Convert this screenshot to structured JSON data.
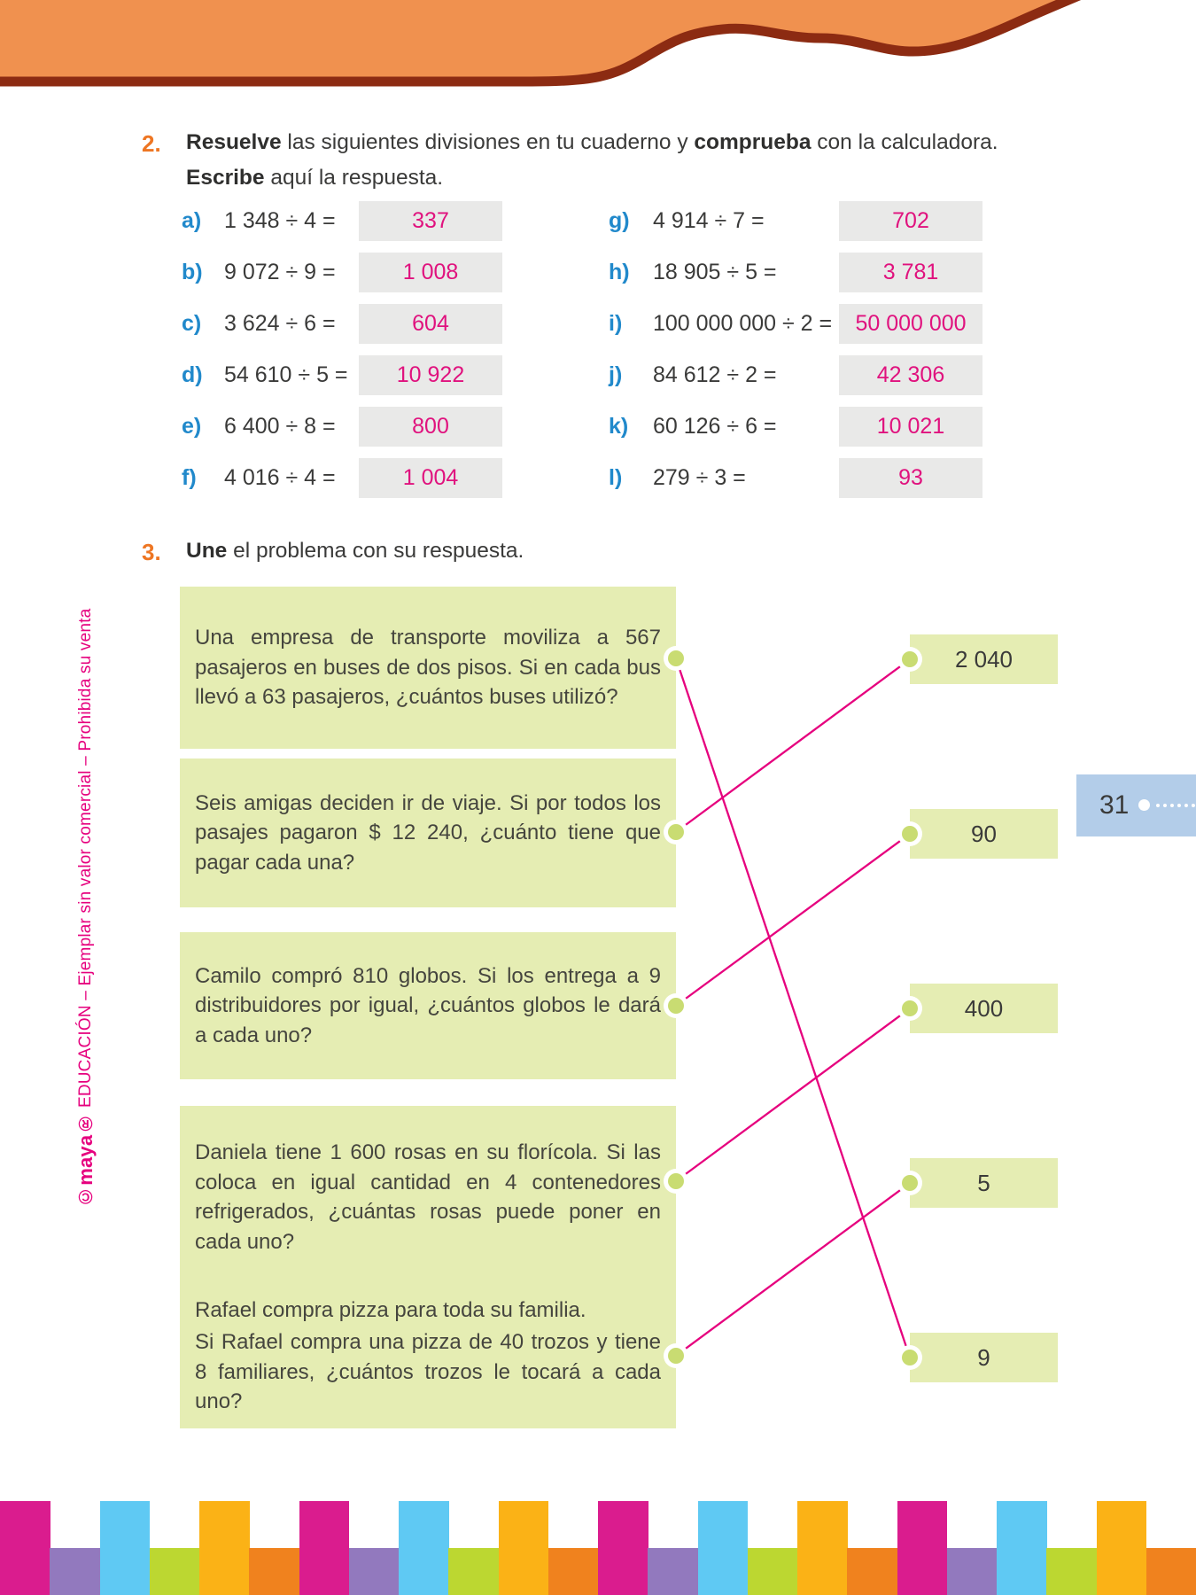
{
  "page_number": "31",
  "sidebar": {
    "logo": "©maya®",
    "imprint": " EDUCACIÓN – Ejemplar sin valor comercial – Prohibida su venta"
  },
  "colors": {
    "header_orange": "#f0914f",
    "header_brown": "#8c2b12",
    "answer_magenta": "#e0127e",
    "label_blue": "#2189cb",
    "exercise_orange": "#ee7623",
    "box_green": "#e5edb3",
    "connector_pink": "#e6007e",
    "tab_blue": "#b3cde9"
  },
  "exercise2": {
    "number": "2.",
    "instr": {
      "b1": "Resuelve",
      "t1": " las siguientes divisiones en tu cuaderno y ",
      "b2": "comprueba",
      "t2": " con la calculadora.",
      "b3": "Escribe",
      "t3": " aquí la respuesta."
    },
    "left": [
      {
        "label": "a)",
        "expr": "1 348 ÷ 4 =",
        "answer": "337"
      },
      {
        "label": "b)",
        "expr": "9 072 ÷ 9 =",
        "answer": "1 008"
      },
      {
        "label": "c)",
        "expr": "3 624 ÷ 6 =",
        "answer": "604"
      },
      {
        "label": "d)",
        "expr": "54 610 ÷ 5 =",
        "answer": "10 922"
      },
      {
        "label": "e)",
        "expr": "6 400 ÷ 8 =",
        "answer": "800"
      },
      {
        "label": "f)",
        "expr": "4 016 ÷ 4 =",
        "answer": "1 004"
      }
    ],
    "right": [
      {
        "label": "g)",
        "expr": "4 914 ÷ 7 =",
        "answer": "702"
      },
      {
        "label": "h)",
        "expr": "18 905 ÷ 5 =",
        "answer": "3 781"
      },
      {
        "label": "i)",
        "expr": "100 000 000 ÷ 2 =",
        "answer": "50 000 000"
      },
      {
        "label": "j)",
        "expr": "84 612 ÷ 2 =",
        "answer": "42 306"
      },
      {
        "label": "k)",
        "expr": "60 126 ÷ 6 =",
        "answer": "10 021"
      },
      {
        "label": "l)",
        "expr": "279 ÷ 3 =",
        "answer": "93"
      }
    ]
  },
  "exercise3": {
    "number": "3.",
    "instr": {
      "b1": "Une",
      "t1": " el problema con su respuesta."
    },
    "problems": [
      {
        "lines": [
          "Una empresa de transporte moviliza a 567 pasajeros en buses de dos pisos. Si en cada bus llevó a 63 pasajeros, ¿cuántos buses utilizó?"
        ]
      },
      {
        "lines": [
          "Seis amigas deciden ir de viaje. Si por todos los pasajes pagaron $ 12 240, ¿cuánto tiene que pagar cada una?"
        ]
      },
      {
        "lines": [
          "Camilo compró 810 globos. Si los entrega a 9 distribuidores por igual, ¿cuántos globos le dará a cada uno?"
        ]
      },
      {
        "lines": [
          "Daniela tiene 1 600 rosas en su florícola. Si las coloca en igual cantidad en 4 contenedores refrigerados, ¿cuántas rosas puede poner en cada uno?"
        ]
      },
      {
        "lines": [
          "Rafael compra pizza para toda su familia.",
          "Si Rafael compra una pizza de 40 trozos y tiene 8 familiares, ¿cuántos trozos le tocará a cada uno?"
        ]
      }
    ],
    "answers": [
      "2 040",
      "90",
      "400",
      "5",
      "9"
    ],
    "connections": [
      {
        "problem": 0,
        "answer": 4
      },
      {
        "problem": 1,
        "answer": 0
      },
      {
        "problem": 2,
        "answer": 1
      },
      {
        "problem": 3,
        "answer": 2
      },
      {
        "problem": 4,
        "answer": 3
      }
    ]
  },
  "stripes": {
    "palette": [
      "#da1c8e",
      "#9279be",
      "#5fc9f3",
      "#bcd731",
      "#fbb216",
      "#f0821e"
    ],
    "count": 24
  }
}
